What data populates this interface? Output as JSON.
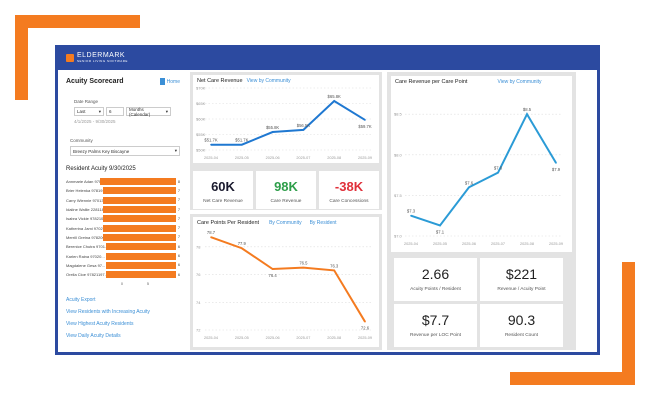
{
  "app": {
    "brand": "ELDERMARK",
    "tagline": "SENIOR LIVING SOFTWARE"
  },
  "colors": {
    "accent_orange": "#f47b20",
    "frame_blue": "#2c4aa0",
    "line_blue": "#1f78d1",
    "positive": "#2e9e4a",
    "negative": "#e0303a"
  },
  "left": {
    "title": "Acuity Scorecard",
    "home": "Home",
    "date_range_label": "Date Range",
    "range_mode": "Last",
    "range_count": "6",
    "range_unit": "Months (Calendar)",
    "date_text": "4/1/2025 - 9/30/2025",
    "community_label": "Community",
    "community": "Breezy Palms Key Biscayne",
    "acuity_title": "Resident Acuity 9/30/2025",
    "residents": [
      {
        "name": "Annmarie Adan 9701...",
        "value": 8
      },
      {
        "name": "Brier Helenka 978191...",
        "value": 7
      },
      {
        "name": "Carry Wiennie 97013...",
        "value": 7
      },
      {
        "name": "Idaline Wallie 228118...",
        "value": 7
      },
      {
        "name": "Isabra Vickie 978210...",
        "value": 7
      },
      {
        "name": "Katherina Jami 9702...",
        "value": 7
      },
      {
        "name": "Merrill Gretna 978206...",
        "value": 7
      },
      {
        "name": "Berenice Chutra 9701...",
        "value": 6
      },
      {
        "name": "Karlen Raina 97020...",
        "value": 6
      },
      {
        "name": "Magdalene Gesa 97...",
        "value": 6
      },
      {
        "name": "Orella Cloe 97821197...",
        "value": 6
      }
    ],
    "axis_ticks": [
      "0",
      "5"
    ],
    "links": [
      "Acuity Export",
      "View Residents with Increasing Acuity",
      "View Highest Acuity Residents",
      "View Daily Acuity Details"
    ]
  },
  "chart_data": [
    {
      "type": "line",
      "title": "Net Care Revenue",
      "link": "View by Community",
      "categories": [
        "2025-04",
        "2025-05",
        "2025-06",
        "2025-07",
        "2025-08",
        "2025-09"
      ],
      "values": [
        51.7,
        51.7,
        55.8,
        56.5,
        65.8,
        59.7
      ],
      "labels": [
        "$51.7K",
        "$51.7K",
        "$55.8K",
        "$56.5K",
        "$65.8K",
        "$59.7K"
      ],
      "yticks": [
        "$50K",
        "$55K",
        "$60K",
        "$65K",
        "$70K"
      ],
      "ylim": [
        50,
        70
      ],
      "color": "#1f78d1"
    },
    {
      "type": "line",
      "title": "Care Points Per Resident",
      "links": [
        "By Community",
        "By Resident"
      ],
      "categories": [
        "2025-04",
        "2025-05",
        "2025-06",
        "2025-07",
        "2025-08",
        "2025-09"
      ],
      "values": [
        78.7,
        77.9,
        76.4,
        76.5,
        76.3,
        72.6
      ],
      "labels": [
        "78.7",
        "77.9",
        "76.4",
        "76.5",
        "76.3",
        "72.6"
      ],
      "yticks": [
        "72",
        "74",
        "76",
        "78"
      ],
      "ylim": [
        72,
        79
      ],
      "color": "#f47b20"
    },
    {
      "type": "line",
      "title": "Care Revenue per Care Point",
      "link": "View by Community",
      "categories": [
        "2025-04",
        "2025-05",
        "2025-06",
        "2025-07",
        "2025-08",
        "2025-09"
      ],
      "values": [
        7.25,
        7.13,
        7.6,
        7.78,
        8.5,
        7.9
      ],
      "labels": [
        "$7.3",
        "$7.1",
        "$7.6",
        "$7.8",
        "$8.5",
        "$7.9"
      ],
      "yticks": [
        "$7.0",
        "$7.5",
        "$8.0",
        "$8.5"
      ],
      "ylim": [
        7.0,
        8.65
      ],
      "color": "#2b9bd6"
    }
  ],
  "kpis": [
    {
      "value": "60K",
      "label": "Net Care Revenue"
    },
    {
      "value": "98K",
      "label": "Care Revenue"
    },
    {
      "value": "-38K",
      "label": "Care Concessions"
    }
  ],
  "tiles": [
    {
      "value": "2.66",
      "label": "Acuity Points / Resident"
    },
    {
      "value": "$221",
      "label": "Revenue / Acuity Point"
    },
    {
      "value": "$7.7",
      "label": "Revenue per LOC Point"
    },
    {
      "value": "90.3",
      "label": "Resident Count"
    }
  ]
}
